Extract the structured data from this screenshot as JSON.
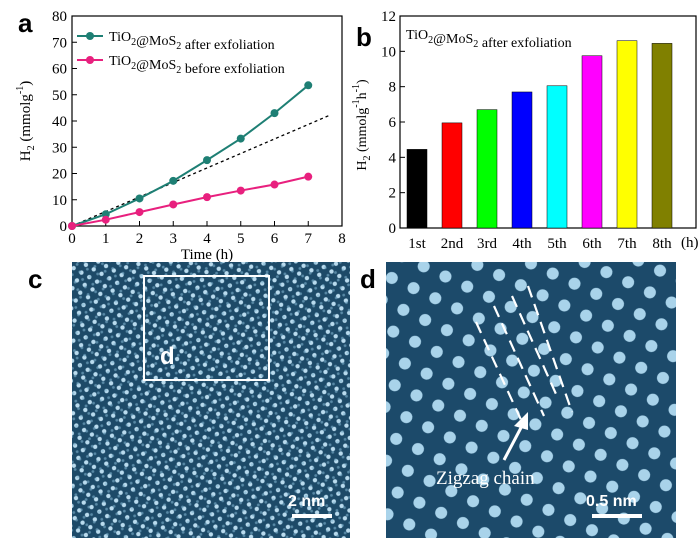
{
  "panels": {
    "a": "a",
    "b": "b",
    "c": "c",
    "d": "d"
  },
  "chart_data": [
    {
      "type": "line",
      "xlabel": "Time (h)",
      "ylabel_main": "H",
      "ylabel_sub": "2",
      "ylabel_unit": " (mmolg",
      "ylabel_sup": "-1",
      "ylabel_close": ")",
      "xlim": [
        0,
        8
      ],
      "ylim": [
        0,
        80
      ],
      "xticks": [
        "0",
        "1",
        "2",
        "3",
        "4",
        "5",
        "6",
        "7",
        "8"
      ],
      "yticks": [
        "0",
        "10",
        "20",
        "30",
        "40",
        "50",
        "60",
        "70",
        "80"
      ],
      "legend_position": "top-left",
      "series": [
        {
          "name": "TiO₂@MoS₂ after exfoliation",
          "color": "#1e7f74",
          "x": [
            0,
            1,
            2,
            3,
            4,
            5,
            6,
            7
          ],
          "y": [
            0,
            4.5,
            10.5,
            17.2,
            25.1,
            33.3,
            43.0,
            53.6
          ]
        },
        {
          "name": "TiO₂@MoS₂ before exfoliation",
          "color": "#e8207e",
          "x": [
            0,
            1,
            2,
            3,
            4,
            5,
            6,
            7
          ],
          "y": [
            0,
            2.4,
            5.3,
            8.2,
            11.0,
            13.5,
            15.8,
            18.8
          ]
        }
      ],
      "reference_line": {
        "style": "dashed",
        "color": "#000000",
        "x": [
          0,
          7.6
        ],
        "y": [
          0,
          42
        ]
      }
    },
    {
      "type": "bar",
      "title": "TiO₂@MoS₂ after exfoliation",
      "ylabel_main": "H",
      "ylabel_sub": "2",
      "ylabel_unit": " (mmolg",
      "ylabel_sup1": "-1",
      "ylabel_mid": "h",
      "ylabel_sup2": "-1",
      "ylabel_close": ")",
      "xunit": "(h)",
      "ylim": [
        0,
        12
      ],
      "yticks": [
        "0",
        "2",
        "4",
        "6",
        "8",
        "10",
        "12"
      ],
      "categories": [
        "1st",
        "2nd",
        "3rd",
        "4th",
        "5th",
        "6th",
        "7th",
        "8th"
      ],
      "values": [
        4.45,
        5.95,
        6.7,
        7.7,
        8.05,
        9.75,
        10.6,
        10.45
      ],
      "colors": [
        "#000000",
        "#ff0000",
        "#00ff00",
        "#0000ff",
        "#00ffff",
        "#ff00ff",
        "#ffff00",
        "#808000"
      ]
    }
  ],
  "tem_c": {
    "box_label": "d",
    "scale_label": "2 nm"
  },
  "tem_d": {
    "annotation": "Zigzag chain",
    "scale_label": "0.5 nm"
  }
}
